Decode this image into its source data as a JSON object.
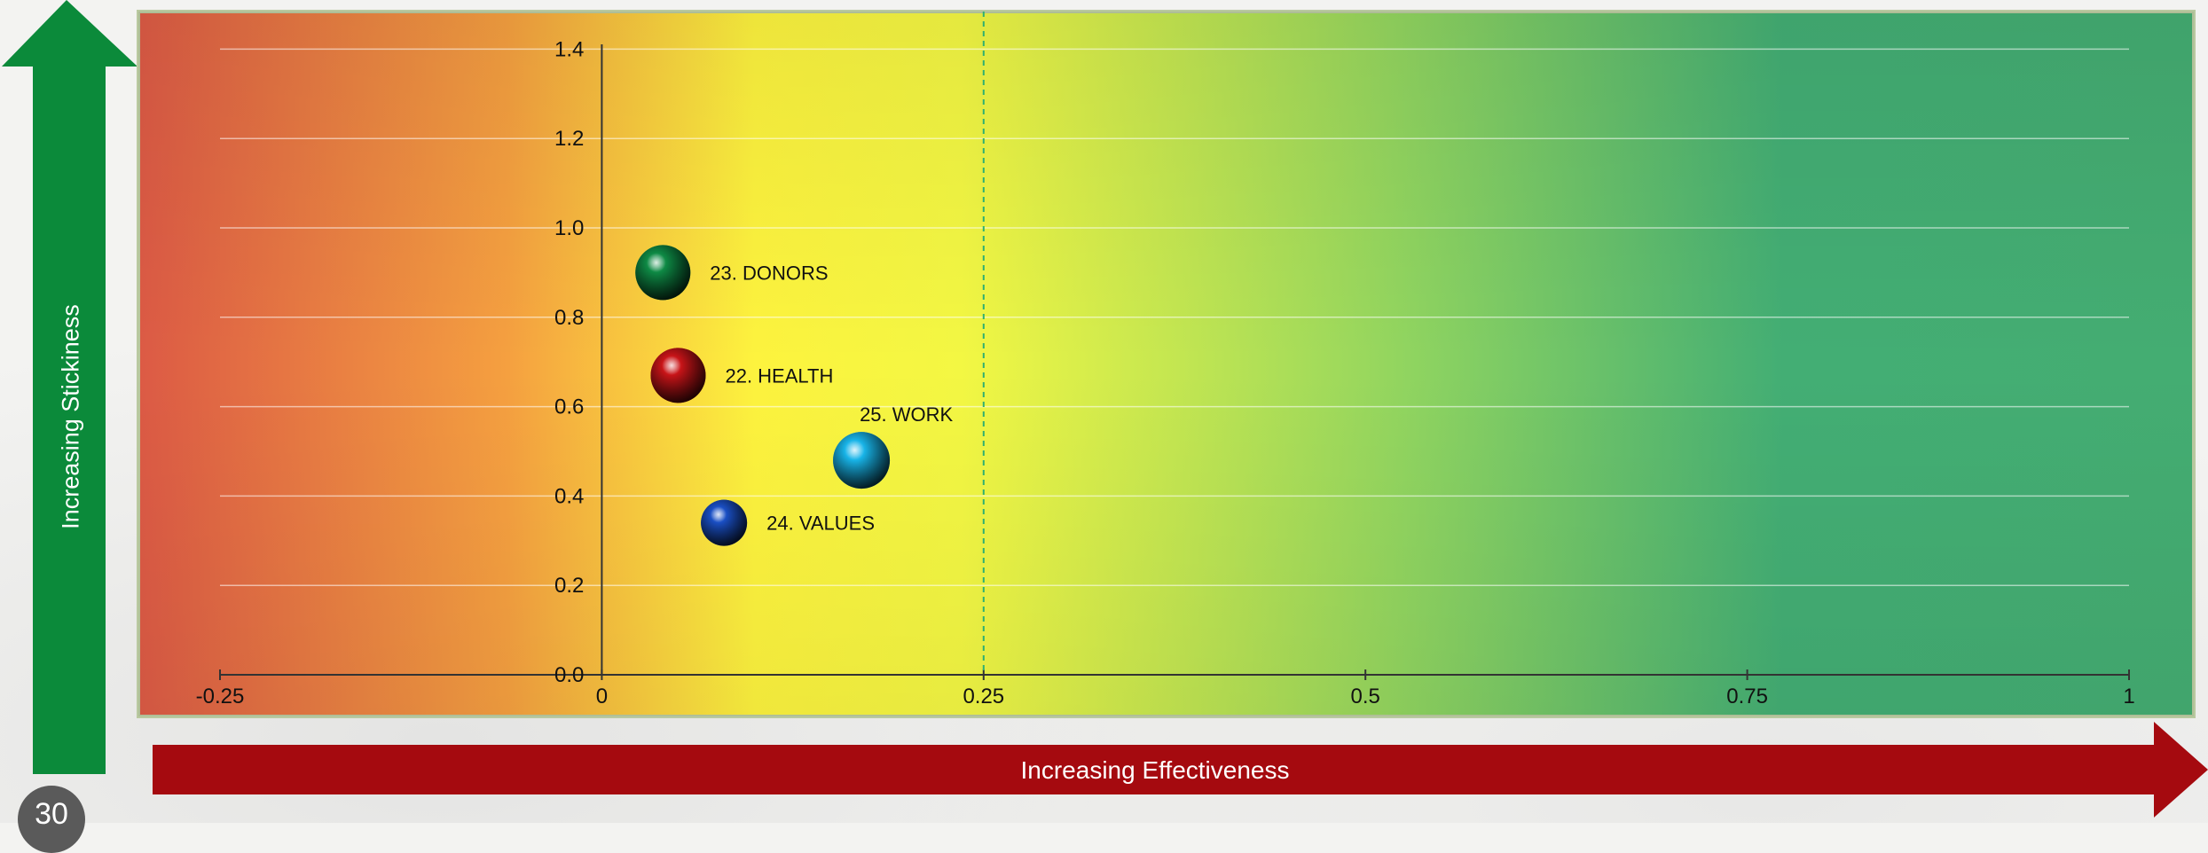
{
  "page": {
    "y_arrow_label": "Increasing Stickiness",
    "x_arrow_label": "Increasing Effectiveness",
    "page_number": "30"
  },
  "colors": {
    "y_arrow": "#0b8a3a",
    "x_arrow": "#a50a0f",
    "page_badge": "#5a5a5a",
    "gradient": [
      "#dc5a45",
      "#f5a040",
      "#fdf33e",
      "#f3f743",
      "#8fd460",
      "#43ae74"
    ],
    "threshold_line": "#30b070"
  },
  "chart_data": {
    "type": "scatter",
    "title": "",
    "xlabel": "",
    "ylabel": "",
    "xlim": [
      -0.25,
      1
    ],
    "ylim": [
      0,
      1.5
    ],
    "x_ticks": [
      "-0.25",
      "0",
      "0.25",
      "0.5",
      "0.75",
      "1"
    ],
    "y_ticks": [
      "0.0",
      "0.2",
      "0.4",
      "0.6",
      "0.8",
      "1.0",
      "1.2",
      "1.4"
    ],
    "grid": "horizontal",
    "reference_line": {
      "x": 0.25,
      "style": "dashed"
    },
    "points": [
      {
        "label": "23. DONORS",
        "x": 0.04,
        "y": 0.9,
        "color": "#0e8a45",
        "label_position": "right"
      },
      {
        "label": "22. HEALTH",
        "x": 0.05,
        "y": 0.67,
        "color": "#c81418",
        "label_position": "right"
      },
      {
        "label": "25. WORK",
        "x": 0.17,
        "y": 0.48,
        "color": "#18b4e8",
        "label_position": "above"
      },
      {
        "label": "24. VALUES",
        "x": 0.08,
        "y": 0.34,
        "color": "#1a4fc4",
        "label_position": "right"
      }
    ]
  }
}
